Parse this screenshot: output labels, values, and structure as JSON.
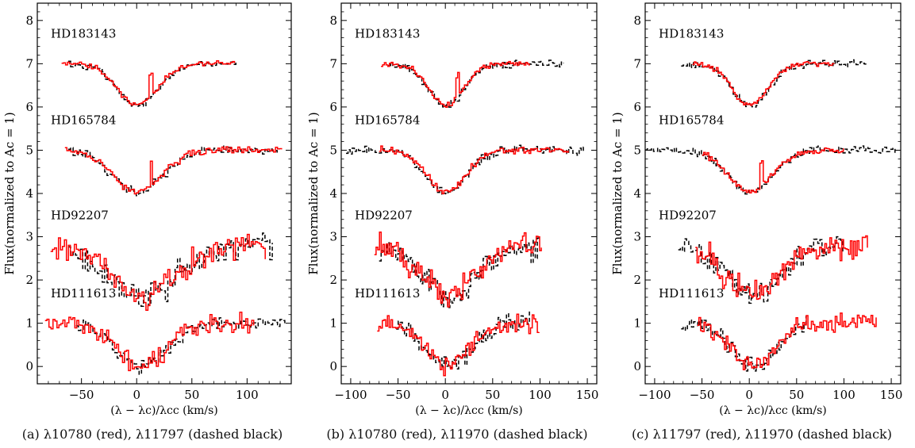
{
  "chart_data": [
    {
      "type": "line",
      "caption": "(a) λ10780 (red), λ11797 (dashed black)",
      "xlabel": "(λ − λc)/λcc (km/s)",
      "ylabel": "Flux(normalized to Ac = 1)",
      "xlim": [
        -90,
        140
      ],
      "ylim": [
        -0.4,
        8.4
      ],
      "xticks": [
        -50,
        0,
        50,
        100
      ],
      "yticks": [
        0,
        1,
        2,
        3,
        4,
        5,
        6,
        7,
        8
      ],
      "grid": false,
      "line_colors": {
        "red": "#ff0000",
        "black": "#000000"
      },
      "stars": [
        {
          "name": "HD183143",
          "offset": 6,
          "depth": 0.97,
          "center": 0,
          "width": 18,
          "red_range": [
            -68,
            90
          ],
          "black_range": [
            -62,
            92
          ],
          "noise_red": 0.03,
          "noise_black": 0.04,
          "spike_at": 7
        },
        {
          "name": "HD165784",
          "offset": 4,
          "depth": 0.97,
          "center": 0,
          "width": 22,
          "red_range": [
            -65,
            132
          ],
          "black_range": [
            -62,
            128
          ],
          "noise_red": 0.04,
          "noise_black": 0.05,
          "spike_at": 3
        },
        {
          "name": "HD92207",
          "offset": 1.8,
          "depth": 1.2,
          "center": 5,
          "width": 28,
          "red_range": [
            -78,
            118
          ],
          "black_range": [
            -62,
            125
          ],
          "noise_red": 0.16,
          "noise_black": 0.15,
          "spike_at": null
        },
        {
          "name": "HD111613",
          "offset": 0,
          "depth": 1.0,
          "center": 3,
          "width": 22,
          "red_range": [
            -83,
            107
          ],
          "black_range": [
            -55,
            135
          ],
          "noise_red": 0.1,
          "noise_black": 0.08,
          "spike_at": null
        }
      ]
    },
    {
      "type": "line",
      "caption": "(b) λ10780 (red), λ11970 (dashed black)",
      "xlabel": "(λ − λc)/λcc (km/s)",
      "ylabel": "Flux(normalized to Ac = 1)",
      "xlim": [
        -110,
        160
      ],
      "ylim": [
        -0.4,
        8.4
      ],
      "xticks": [
        -100,
        -50,
        0,
        50,
        100,
        150
      ],
      "yticks": [
        0,
        1,
        2,
        3,
        4,
        5,
        6,
        7,
        8
      ],
      "grid": false,
      "line_colors": {
        "red": "#ff0000",
        "black": "#000000"
      },
      "stars": [
        {
          "name": "HD183143",
          "offset": 6,
          "depth": 0.97,
          "center": 0,
          "width": 18,
          "red_range": [
            -68,
            90
          ],
          "black_range": [
            -60,
            125
          ],
          "noise_red": 0.03,
          "noise_black": 0.04,
          "spike_at": 7
        },
        {
          "name": "HD165784",
          "offset": 4,
          "depth": 0.98,
          "center": 0,
          "width": 20,
          "red_range": [
            -70,
            130
          ],
          "black_range": [
            -105,
            150
          ],
          "noise_red": 0.04,
          "noise_black": 0.05,
          "spike_at": null
        },
        {
          "name": "HD92207",
          "offset": 1.8,
          "depth": 1.15,
          "center": 3,
          "width": 28,
          "red_range": [
            -75,
            102
          ],
          "black_range": [
            -70,
            100
          ],
          "noise_red": 0.16,
          "noise_black": 0.15,
          "spike_at": null
        },
        {
          "name": "HD111613",
          "offset": 0,
          "depth": 1.0,
          "center": 3,
          "width": 22,
          "red_range": [
            -72,
            100
          ],
          "black_range": [
            -52,
            90
          ],
          "noise_red": 0.1,
          "noise_black": 0.12,
          "spike_at": null
        }
      ]
    },
    {
      "type": "line",
      "caption": "(c) λ11797 (red), λ11970 (dashed black)",
      "xlabel": "(λ − λc)/λcc (km/s)",
      "ylabel": "Flux(normalized to Ac = 1)",
      "xlim": [
        -110,
        160
      ],
      "ylim": [
        -0.4,
        8.4
      ],
      "xticks": [
        -100,
        -50,
        0,
        50,
        100,
        150
      ],
      "yticks": [
        0,
        1,
        2,
        3,
        4,
        5,
        6,
        7,
        8
      ],
      "grid": false,
      "line_colors": {
        "red": "#ff0000",
        "black": "#000000"
      },
      "stars": [
        {
          "name": "HD183143",
          "offset": 6,
          "depth": 0.97,
          "center": 0,
          "width": 18,
          "red_range": [
            -60,
            90
          ],
          "black_range": [
            -72,
            125
          ],
          "noise_red": 0.03,
          "noise_black": 0.04,
          "spike_at": null
        },
        {
          "name": "HD165784",
          "offset": 4,
          "depth": 0.97,
          "center": 0,
          "width": 22,
          "red_range": [
            -50,
            100
          ],
          "black_range": [
            -110,
            155
          ],
          "noise_red": 0.04,
          "noise_black": 0.05,
          "spike_at": 3
        },
        {
          "name": "HD92207",
          "offset": 1.8,
          "depth": 1.15,
          "center": 3,
          "width": 28,
          "red_range": [
            -57,
            125
          ],
          "black_range": [
            -75,
            100
          ],
          "noise_red": 0.16,
          "noise_black": 0.15,
          "spike_at": null
        },
        {
          "name": "HD111613",
          "offset": 0,
          "depth": 1.0,
          "center": 3,
          "width": 22,
          "red_range": [
            -55,
            135
          ],
          "black_range": [
            -72,
            62
          ],
          "noise_red": 0.1,
          "noise_black": 0.12,
          "spike_at": null
        }
      ]
    }
  ]
}
